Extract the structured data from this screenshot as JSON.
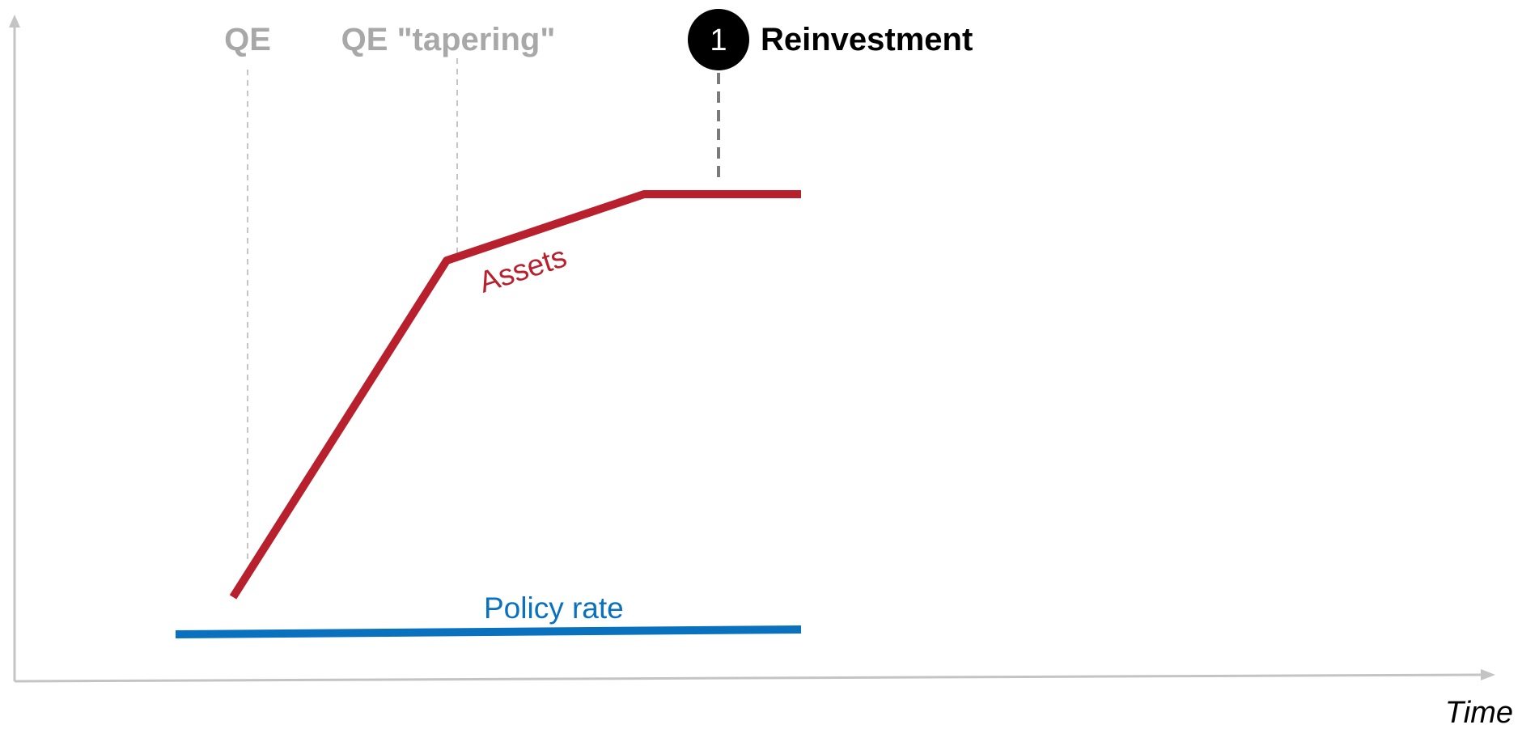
{
  "annotations": {
    "qe": "QE",
    "qe_tapering": "QE \"tapering\"",
    "reinvestment_number": "1",
    "reinvestment": "Reinvestment"
  },
  "series": {
    "assets": "Assets",
    "policy_rate": "Policy rate"
  },
  "axes": {
    "x_label": "Time"
  },
  "colors": {
    "assets": "#b8202e",
    "policy_rate": "#0a71bf",
    "axis": "#c4c4c4",
    "muted_label": "#a8a8a8",
    "badge": "#000000"
  }
}
